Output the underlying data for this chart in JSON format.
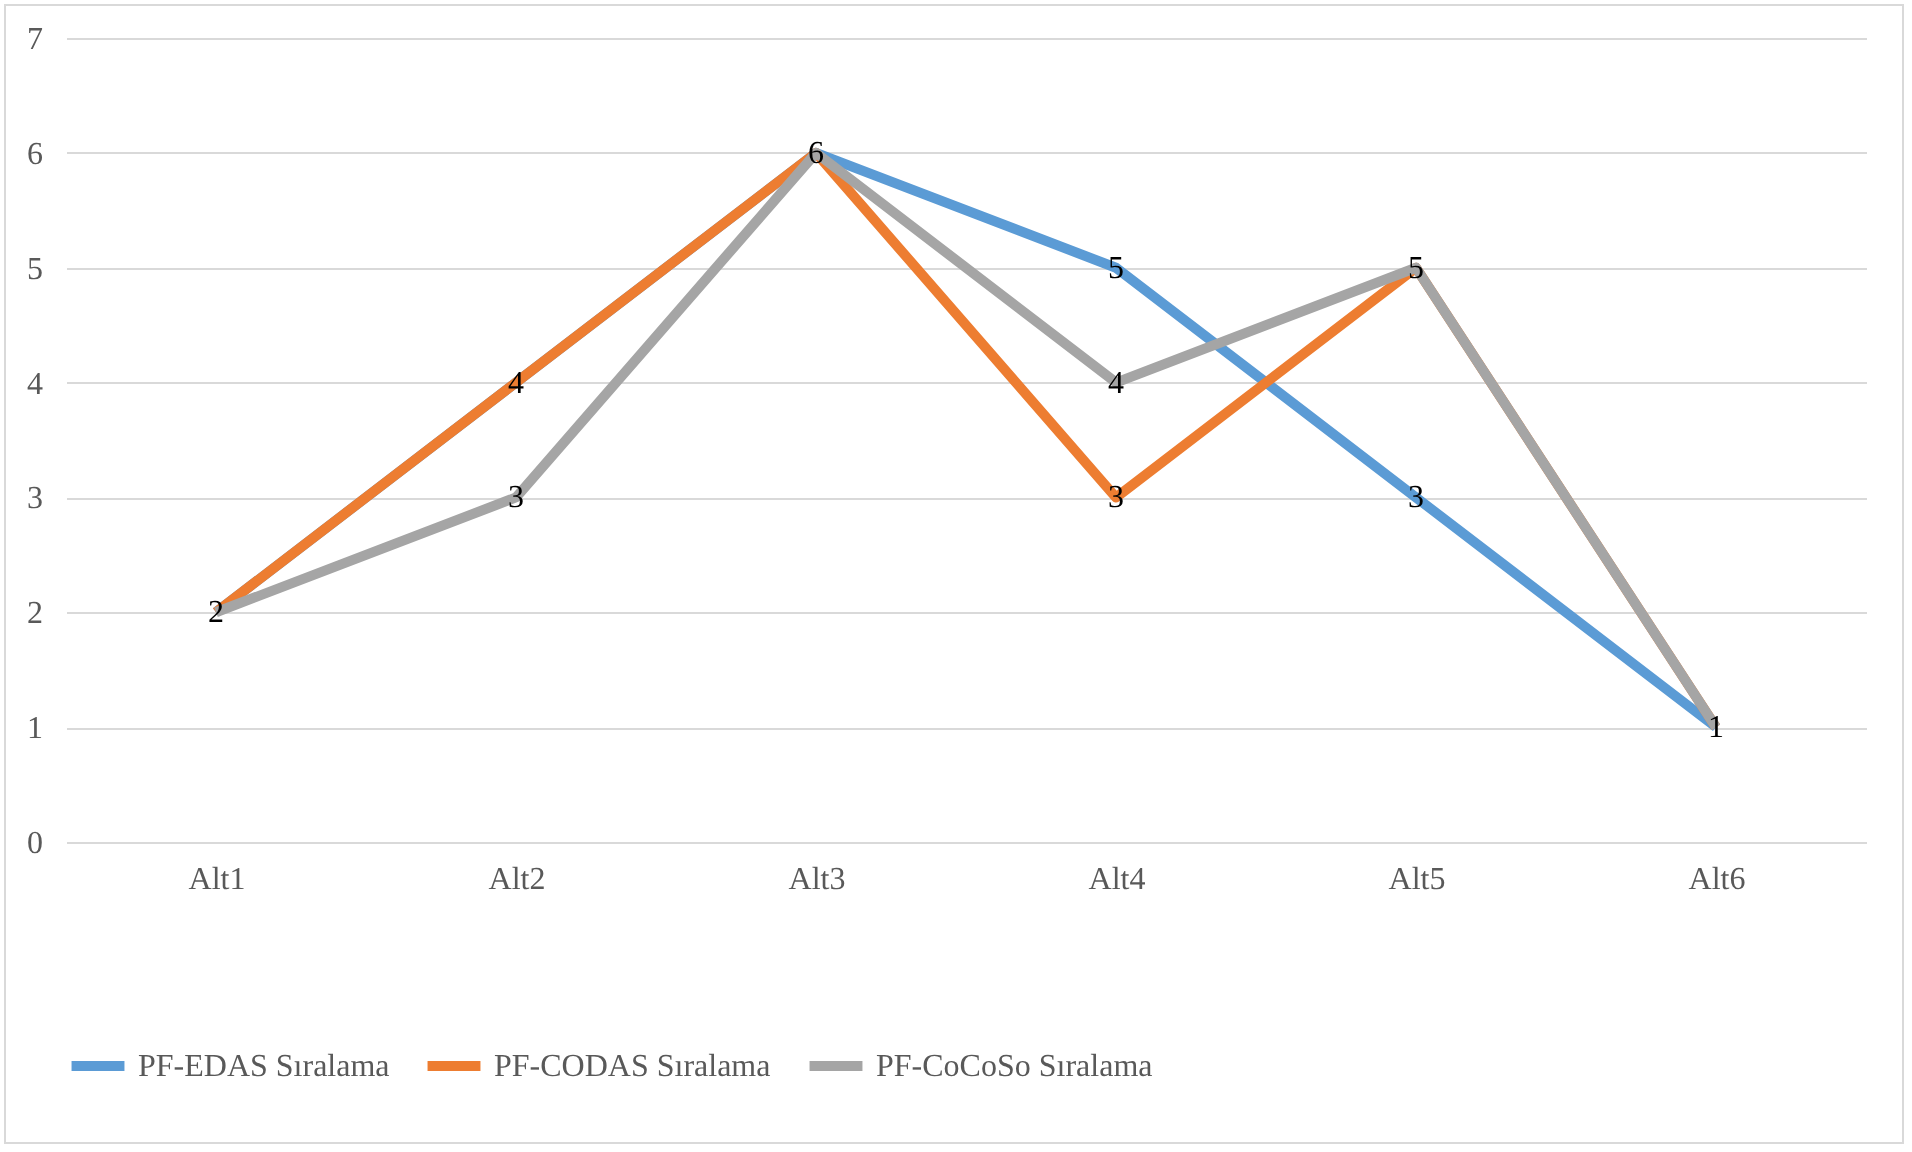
{
  "chart_data": {
    "type": "line",
    "categories": [
      "Alt1",
      "Alt2",
      "Alt3",
      "Alt4",
      "Alt5",
      "Alt6"
    ],
    "series": [
      {
        "name": "PF-EDAS Sıralama",
        "color": "#5b9bd5",
        "values": [
          2,
          4,
          6,
          5,
          3,
          1
        ],
        "value_labels": [
          "2",
          "4",
          "6",
          "5",
          "3",
          "1"
        ]
      },
      {
        "name": "PF-CODAS Sıralama",
        "color": "#ed7d31",
        "values": [
          2,
          4,
          6,
          3,
          5,
          1
        ],
        "value_labels": [
          null,
          null,
          null,
          "3",
          "5",
          null
        ]
      },
      {
        "name": "PF-CoCoSo Sıralama",
        "color": "#a5a5a5",
        "values": [
          2,
          3,
          6,
          4,
          5,
          1
        ],
        "value_labels": [
          null,
          "3",
          null,
          "4",
          null,
          null
        ]
      }
    ],
    "ylim": [
      0,
      7
    ],
    "yticks": [
      0,
      1,
      2,
      3,
      4,
      5,
      6,
      7
    ],
    "grid": "y",
    "legend": "bottom"
  }
}
